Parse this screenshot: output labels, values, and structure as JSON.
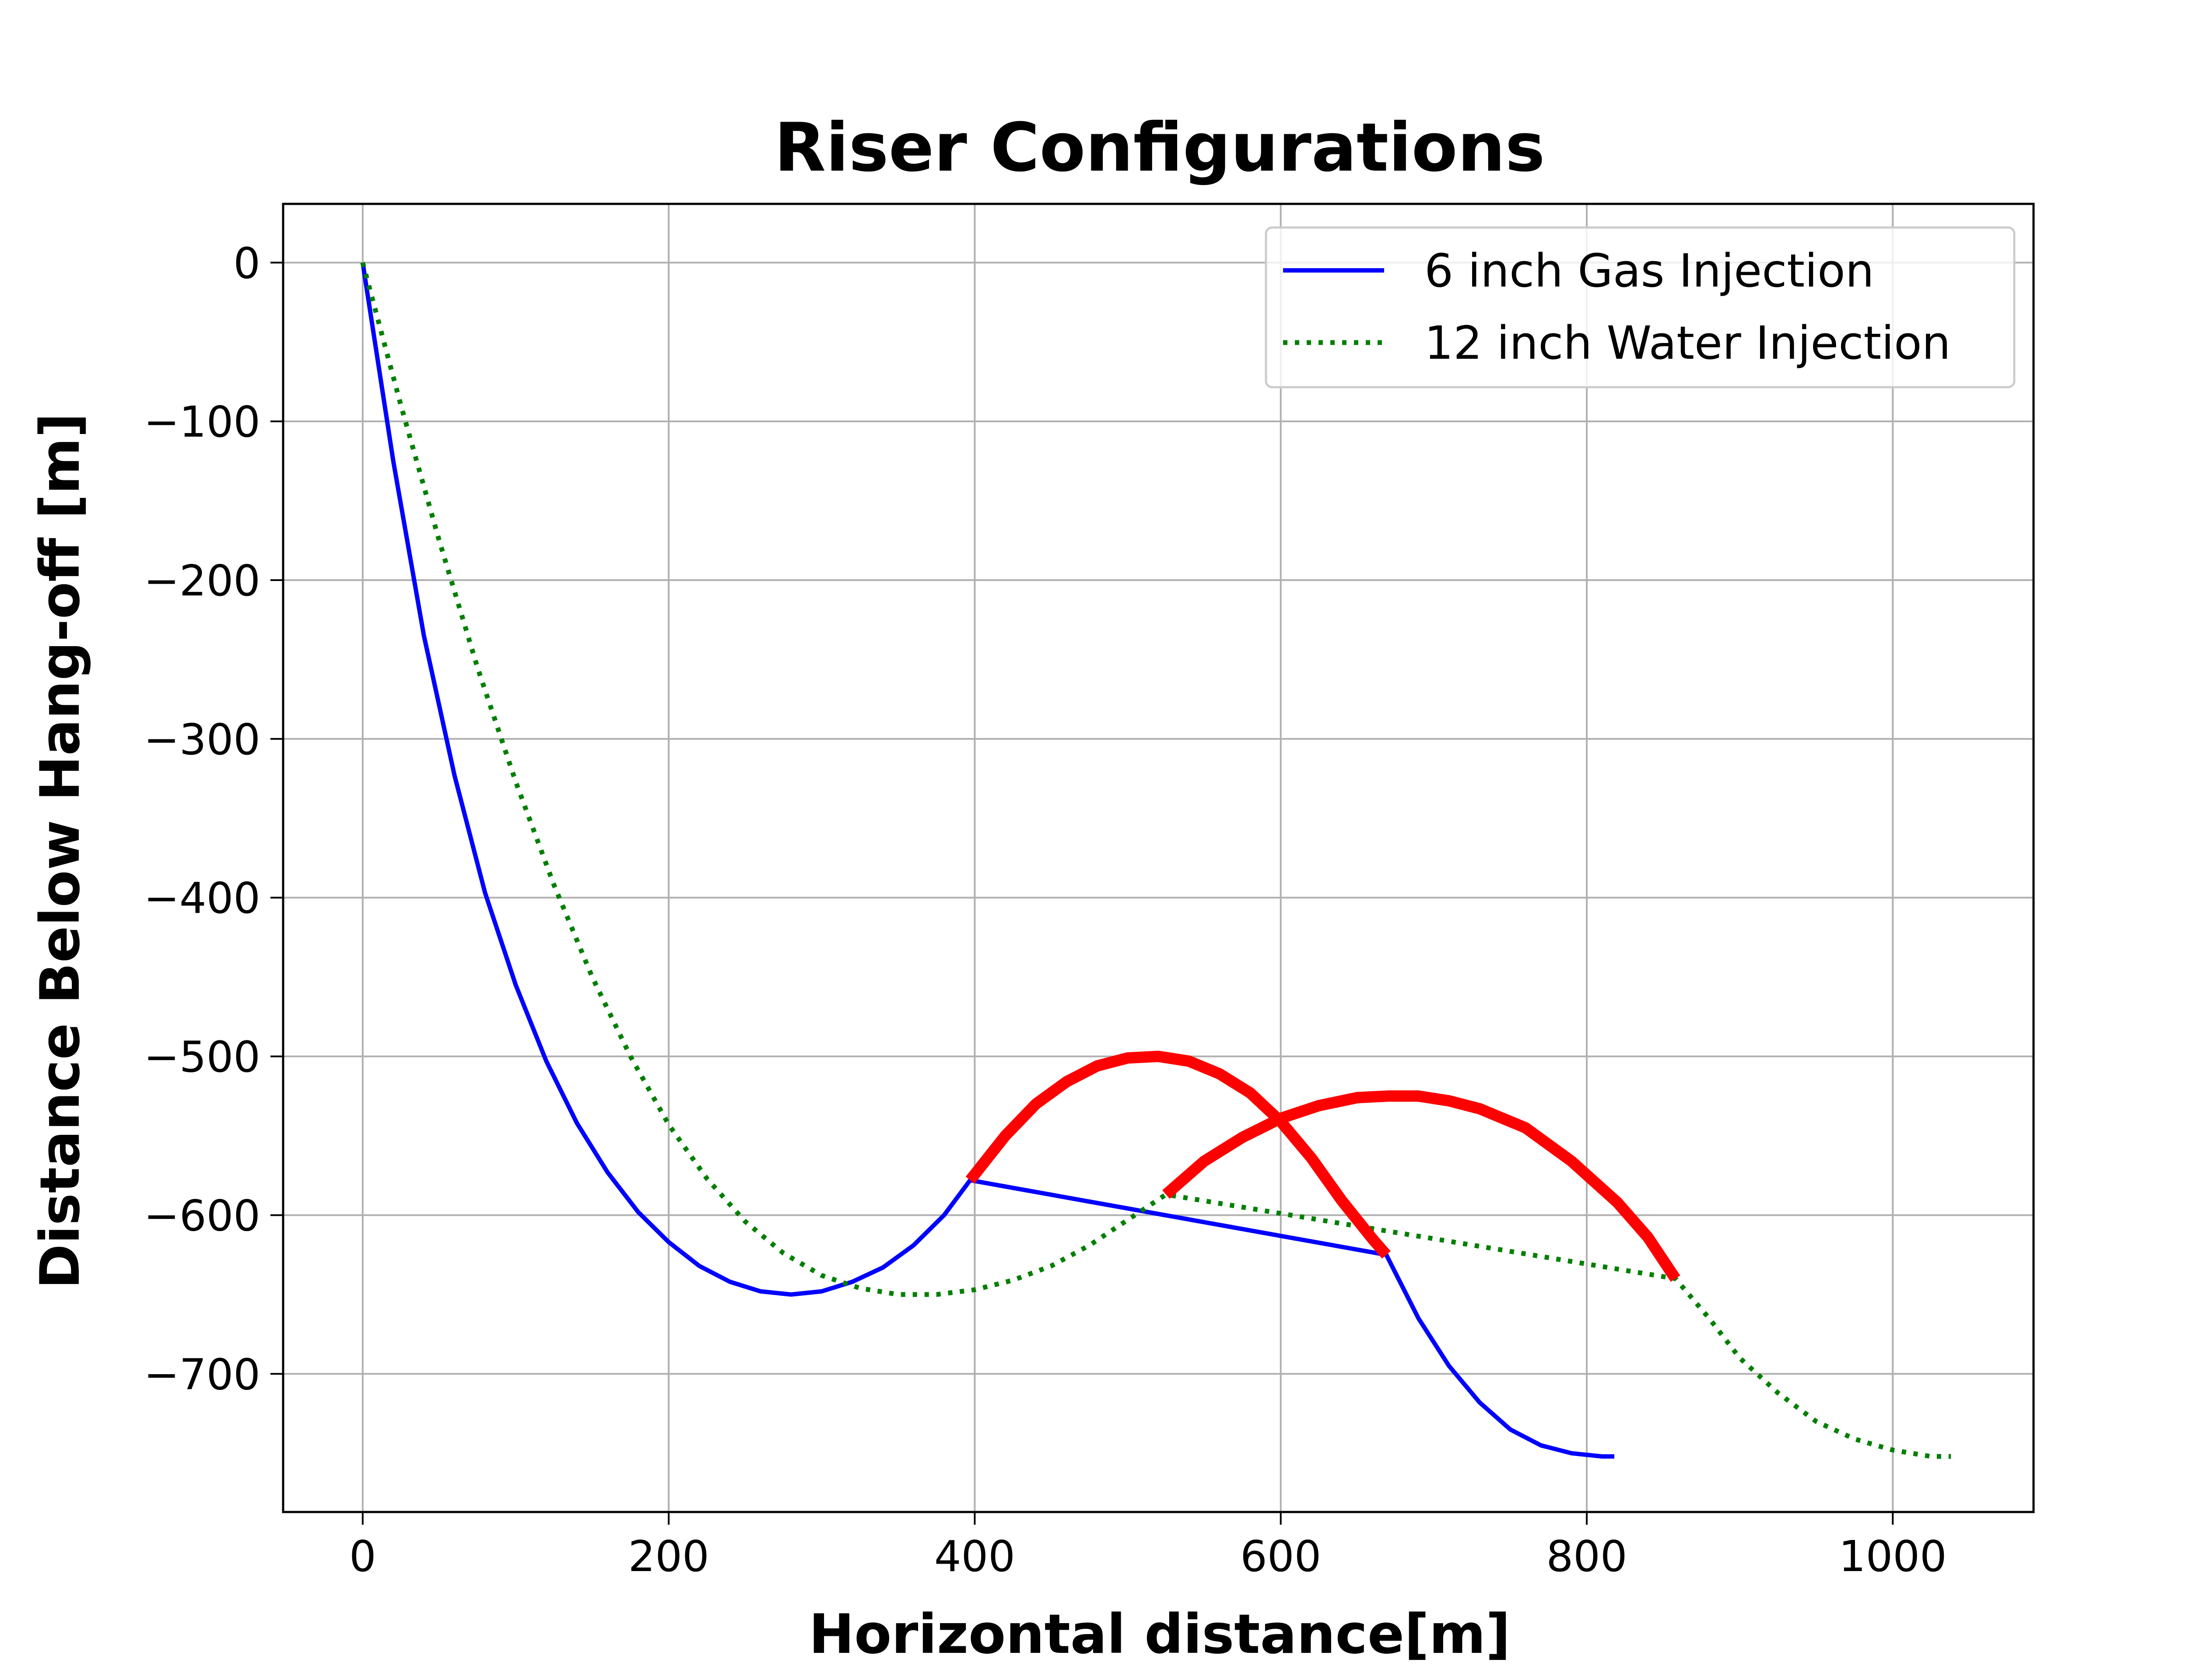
{
  "chart_data": {
    "type": "line",
    "title": "Riser Configurations",
    "xlabel": "Horizontal distance[m]",
    "ylabel": "Distance Below Hang-off [m]",
    "xlim": [
      -52,
      1092
    ],
    "ylim": [
      -787,
      37
    ],
    "xticks": [
      0,
      200,
      400,
      600,
      800,
      1000
    ],
    "xtick_labels": [
      "0",
      "200",
      "400",
      "600",
      "800",
      "1000"
    ],
    "yticks": [
      0,
      -100,
      -200,
      -300,
      -400,
      -500,
      -600,
      -700
    ],
    "ytick_labels": [
      "0",
      "−100",
      "−200",
      "−300",
      "−400",
      "−500",
      "−600",
      "−700"
    ],
    "grid": true,
    "legend_position": "top-right",
    "series": [
      {
        "name": "6 inch Gas Injection",
        "color": "#0000ff",
        "style": "solid",
        "x": [
          0,
          20,
          40,
          60,
          80,
          100,
          120,
          140,
          160,
          180,
          200,
          220,
          240,
          260,
          280,
          300,
          320,
          340,
          360,
          380,
          397,
          669,
          690,
          710,
          730,
          750,
          770,
          790,
          810,
          818
        ],
        "y": [
          0,
          -125,
          -235,
          -323,
          -397,
          -455,
          -503,
          -542,
          -573,
          -598,
          -617,
          -632,
          -642,
          -648,
          -650,
          -648,
          -642,
          -633,
          -619,
          -600,
          -578,
          -625,
          -665,
          -695,
          -718,
          -735,
          -745,
          -750,
          -752,
          -752
        ]
      },
      {
        "name": "12 inch Water Injection",
        "color": "#007f00",
        "style": "dotted",
        "x": [
          0,
          25,
          50,
          75,
          100,
          125,
          150,
          175,
          200,
          225,
          250,
          275,
          300,
          325,
          350,
          375,
          400,
          425,
          450,
          475,
          500,
          525,
          858,
          880,
          900,
          925,
          950,
          975,
          1000,
          1025,
          1038
        ],
        "y": [
          0,
          -90,
          -175,
          -255,
          -327,
          -392,
          -450,
          -500,
          -543,
          -577,
          -604,
          -624,
          -638,
          -646,
          -650,
          -650,
          -647,
          -641,
          -632,
          -619,
          -603,
          -587,
          -640,
          -665,
          -690,
          -712,
          -730,
          -741,
          -748,
          -752,
          -752
        ]
      }
    ],
    "highlight_segments": [
      {
        "color": "#ff0000",
        "x": [
          397,
          420,
          440,
          460,
          480,
          500,
          520,
          540,
          560,
          580,
          600,
          620,
          640,
          660,
          669
        ],
        "y": [
          -578,
          -550,
          -530,
          -516,
          -506,
          -501,
          -500,
          -503,
          -511,
          -523,
          -541,
          -564,
          -591,
          -615,
          -625
        ]
      },
      {
        "color": "#ff0000",
        "x": [
          525,
          550,
          575,
          600,
          625,
          650,
          670,
          690,
          710,
          730,
          760,
          790,
          820,
          840,
          858
        ],
        "y": [
          -587,
          -566,
          -551,
          -539,
          -531,
          -526,
          -525,
          -525,
          -528,
          -533,
          -545,
          -566,
          -592,
          -614,
          -640
        ]
      }
    ]
  }
}
